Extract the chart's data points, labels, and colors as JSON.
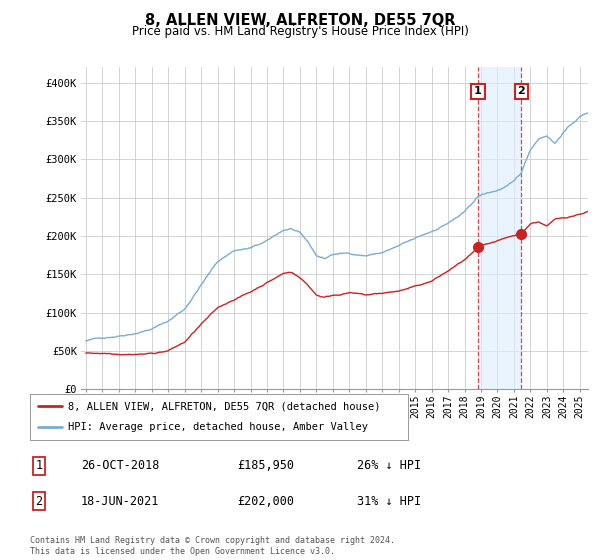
{
  "title": "8, ALLEN VIEW, ALFRETON, DE55 7QR",
  "subtitle": "Price paid vs. HM Land Registry's House Price Index (HPI)",
  "ylabel_ticks": [
    "£0",
    "£50K",
    "£100K",
    "£150K",
    "£200K",
    "£250K",
    "£300K",
    "£350K",
    "£400K"
  ],
  "ytick_values": [
    0,
    50000,
    100000,
    150000,
    200000,
    250000,
    300000,
    350000,
    400000
  ],
  "ylim": [
    0,
    420000
  ],
  "xlim_start": 1994.7,
  "xlim_end": 2025.5,
  "hpi_color": "#7aadd4",
  "price_color": "#cc2222",
  "marker1_x": 2018.82,
  "marker1_y": 185950,
  "marker2_x": 2021.46,
  "marker2_y": 202000,
  "vline1_x": 2018.82,
  "vline2_x": 2021.46,
  "legend_label_price": "8, ALLEN VIEW, ALFRETON, DE55 7QR (detached house)",
  "legend_label_hpi": "HPI: Average price, detached house, Amber Valley",
  "annotation1_label": "1",
  "annotation1_date": "26-OCT-2018",
  "annotation1_price": "£185,950",
  "annotation1_hpi": "26% ↓ HPI",
  "annotation2_label": "2",
  "annotation2_date": "18-JUN-2021",
  "annotation2_price": "£202,000",
  "annotation2_hpi": "31% ↓ HPI",
  "footnote": "Contains HM Land Registry data © Crown copyright and database right 2024.\nThis data is licensed under the Open Government Licence v3.0.",
  "background_color": "#ffffff",
  "grid_color": "#cccccc",
  "shaded_region_color": "#ddeeff",
  "shaded_region_alpha": 0.6
}
